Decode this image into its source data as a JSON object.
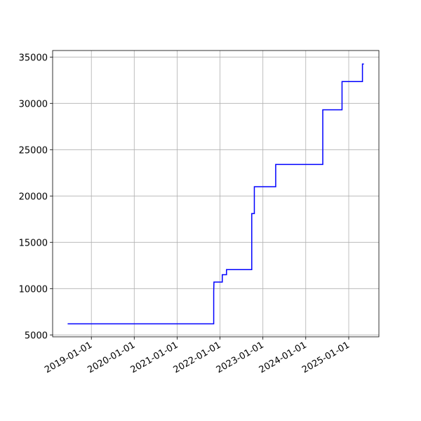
{
  "chart_data": {
    "type": "line",
    "x": [
      "2018-06-13",
      "2021-11-08",
      "2021-11-08",
      "2021-11-10",
      "2022-01-20",
      "2022-01-20",
      "2022-02-25",
      "2022-02-25",
      "2022-09-28",
      "2022-09-28",
      "2022-10-20",
      "2022-10-20",
      "2023-04-20",
      "2023-04-20",
      "2024-05-25",
      "2024-05-25",
      "2024-11-05",
      "2024-11-05",
      "2025-04-28",
      "2025-04-28",
      "2025-05-10"
    ],
    "series": [
      {
        "color": "#0000ff",
        "values": [
          6200,
          6200,
          9700,
          10700,
          10700,
          11500,
          11500,
          12050,
          12050,
          18100,
          18100,
          21000,
          21000,
          23400,
          23400,
          29300,
          29300,
          32350,
          32350,
          34250,
          34250
        ]
      }
    ],
    "xlim": [
      "2018-02-05",
      "2025-09-15"
    ],
    "xticks": [
      "2019-01-01",
      "2020-01-01",
      "2021-01-01",
      "2022-01-01",
      "2023-01-01",
      "2024-01-01",
      "2025-01-01"
    ],
    "ylim": [
      4795,
      35705
    ],
    "yticks": [
      5000,
      10000,
      15000,
      20000,
      25000,
      30000,
      35000
    ],
    "grid": true
  }
}
